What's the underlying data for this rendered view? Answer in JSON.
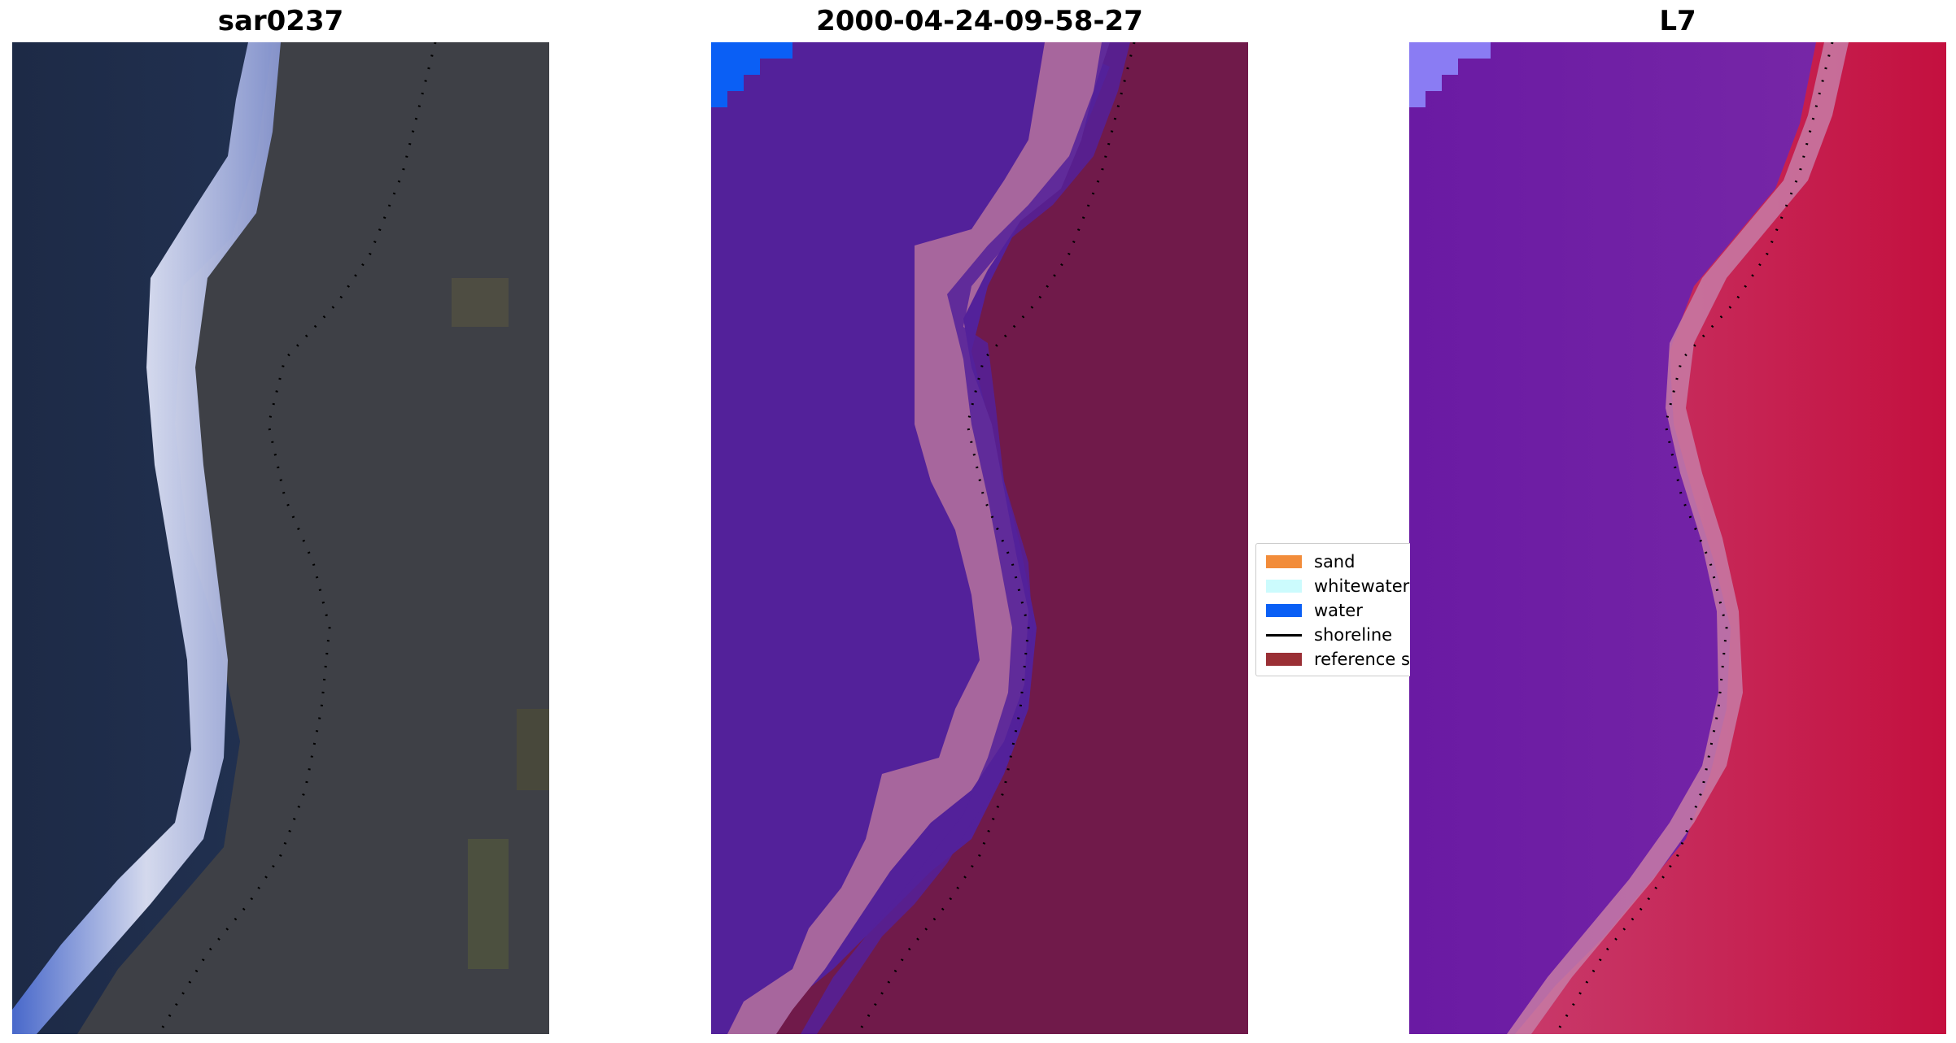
{
  "panels": [
    {
      "title": "sar0237"
    },
    {
      "title": "2000-04-24-09-58-27"
    },
    {
      "title": "L7"
    }
  ],
  "legend": {
    "items": [
      {
        "label": "sand",
        "color": "#f28c3a",
        "kind": "patch"
      },
      {
        "label": "whitewater",
        "color": "#ccfbfd",
        "kind": "patch"
      },
      {
        "label": "water",
        "color": "#0a5ff5",
        "kind": "patch"
      },
      {
        "label": "shoreline",
        "color": "#000000",
        "kind": "line"
      },
      {
        "label": "reference sl",
        "color": "#9a2f35",
        "kind": "patch"
      }
    ]
  },
  "colors": {
    "rgb_water": "#22304f",
    "rgb_land": "#3f4145",
    "rgb_surf": "#dfe4ff",
    "class_water": "#53219a",
    "class_sand": "#a7669d",
    "class_land": "#701a4a",
    "class_sea": "#0a5ff5",
    "index_water": "#6b21a8",
    "index_land": "#c81e4a",
    "shoreline": "#000000"
  }
}
